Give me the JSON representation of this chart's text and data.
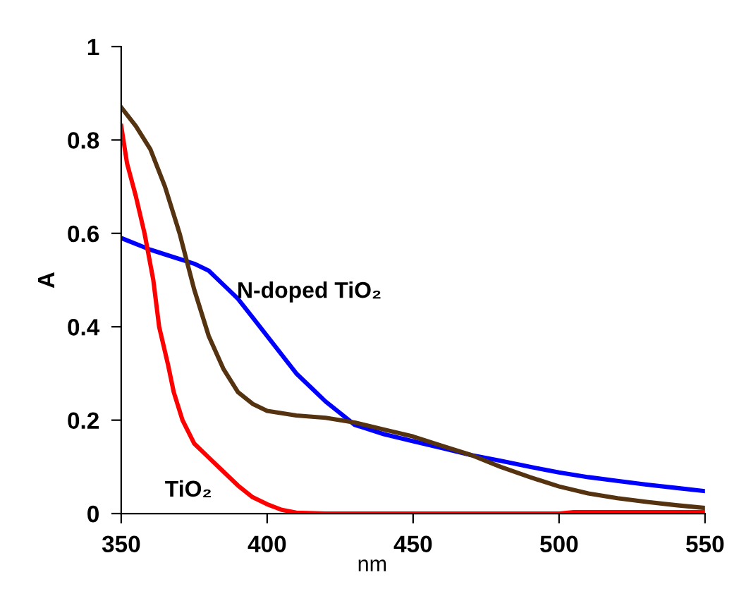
{
  "chart_data": {
    "type": "line",
    "xlabel": "nm",
    "ylabel": "A",
    "xlim": [
      350,
      550
    ],
    "ylim": [
      0,
      1
    ],
    "xticks": [
      350,
      400,
      450,
      500,
      550
    ],
    "yticks": [
      0,
      0.2,
      0.4,
      0.6,
      0.8,
      1
    ],
    "grid": false,
    "legend": false,
    "marker": "none",
    "line_style": "solid",
    "series": [
      {
        "name": "N-doped TiO₂",
        "color": "#0000ff",
        "x": [
          350,
          360,
          370,
          375,
          380,
          385,
          390,
          395,
          400,
          405,
          410,
          415,
          420,
          425,
          430,
          440,
          450,
          460,
          470,
          480,
          490,
          500,
          510,
          520,
          530,
          540,
          550
        ],
        "values": [
          0.59,
          0.565,
          0.545,
          0.535,
          0.52,
          0.49,
          0.46,
          0.42,
          0.38,
          0.34,
          0.3,
          0.27,
          0.24,
          0.215,
          0.19,
          0.17,
          0.155,
          0.14,
          0.125,
          0.113,
          0.1,
          0.088,
          0.078,
          0.07,
          0.062,
          0.055,
          0.048
        ]
      },
      {
        "color": "#553311",
        "x": [
          350,
          355,
          360,
          365,
          370,
          375,
          380,
          385,
          390,
          395,
          400,
          410,
          420,
          430,
          440,
          450,
          460,
          470,
          480,
          490,
          500,
          510,
          520,
          530,
          540,
          550
        ],
        "values": [
          0.87,
          0.83,
          0.78,
          0.7,
          0.6,
          0.48,
          0.38,
          0.31,
          0.26,
          0.235,
          0.22,
          0.21,
          0.205,
          0.195,
          0.18,
          0.165,
          0.145,
          0.125,
          0.1,
          0.078,
          0.058,
          0.043,
          0.033,
          0.025,
          0.018,
          0.012
        ]
      },
      {
        "name": "TiO₂",
        "color": "#ff0000",
        "x": [
          350,
          352,
          355,
          358,
          361,
          363,
          366,
          368,
          371,
          375,
          380,
          385,
          390,
          395,
          400,
          405,
          410,
          420,
          500,
          505,
          550
        ],
        "values": [
          0.83,
          0.75,
          0.68,
          0.6,
          0.5,
          0.4,
          0.32,
          0.26,
          0.2,
          0.15,
          0.12,
          0.09,
          0.06,
          0.035,
          0.02,
          0.008,
          0.002,
          0,
          0,
          0.003,
          0.003
        ]
      }
    ]
  }
}
